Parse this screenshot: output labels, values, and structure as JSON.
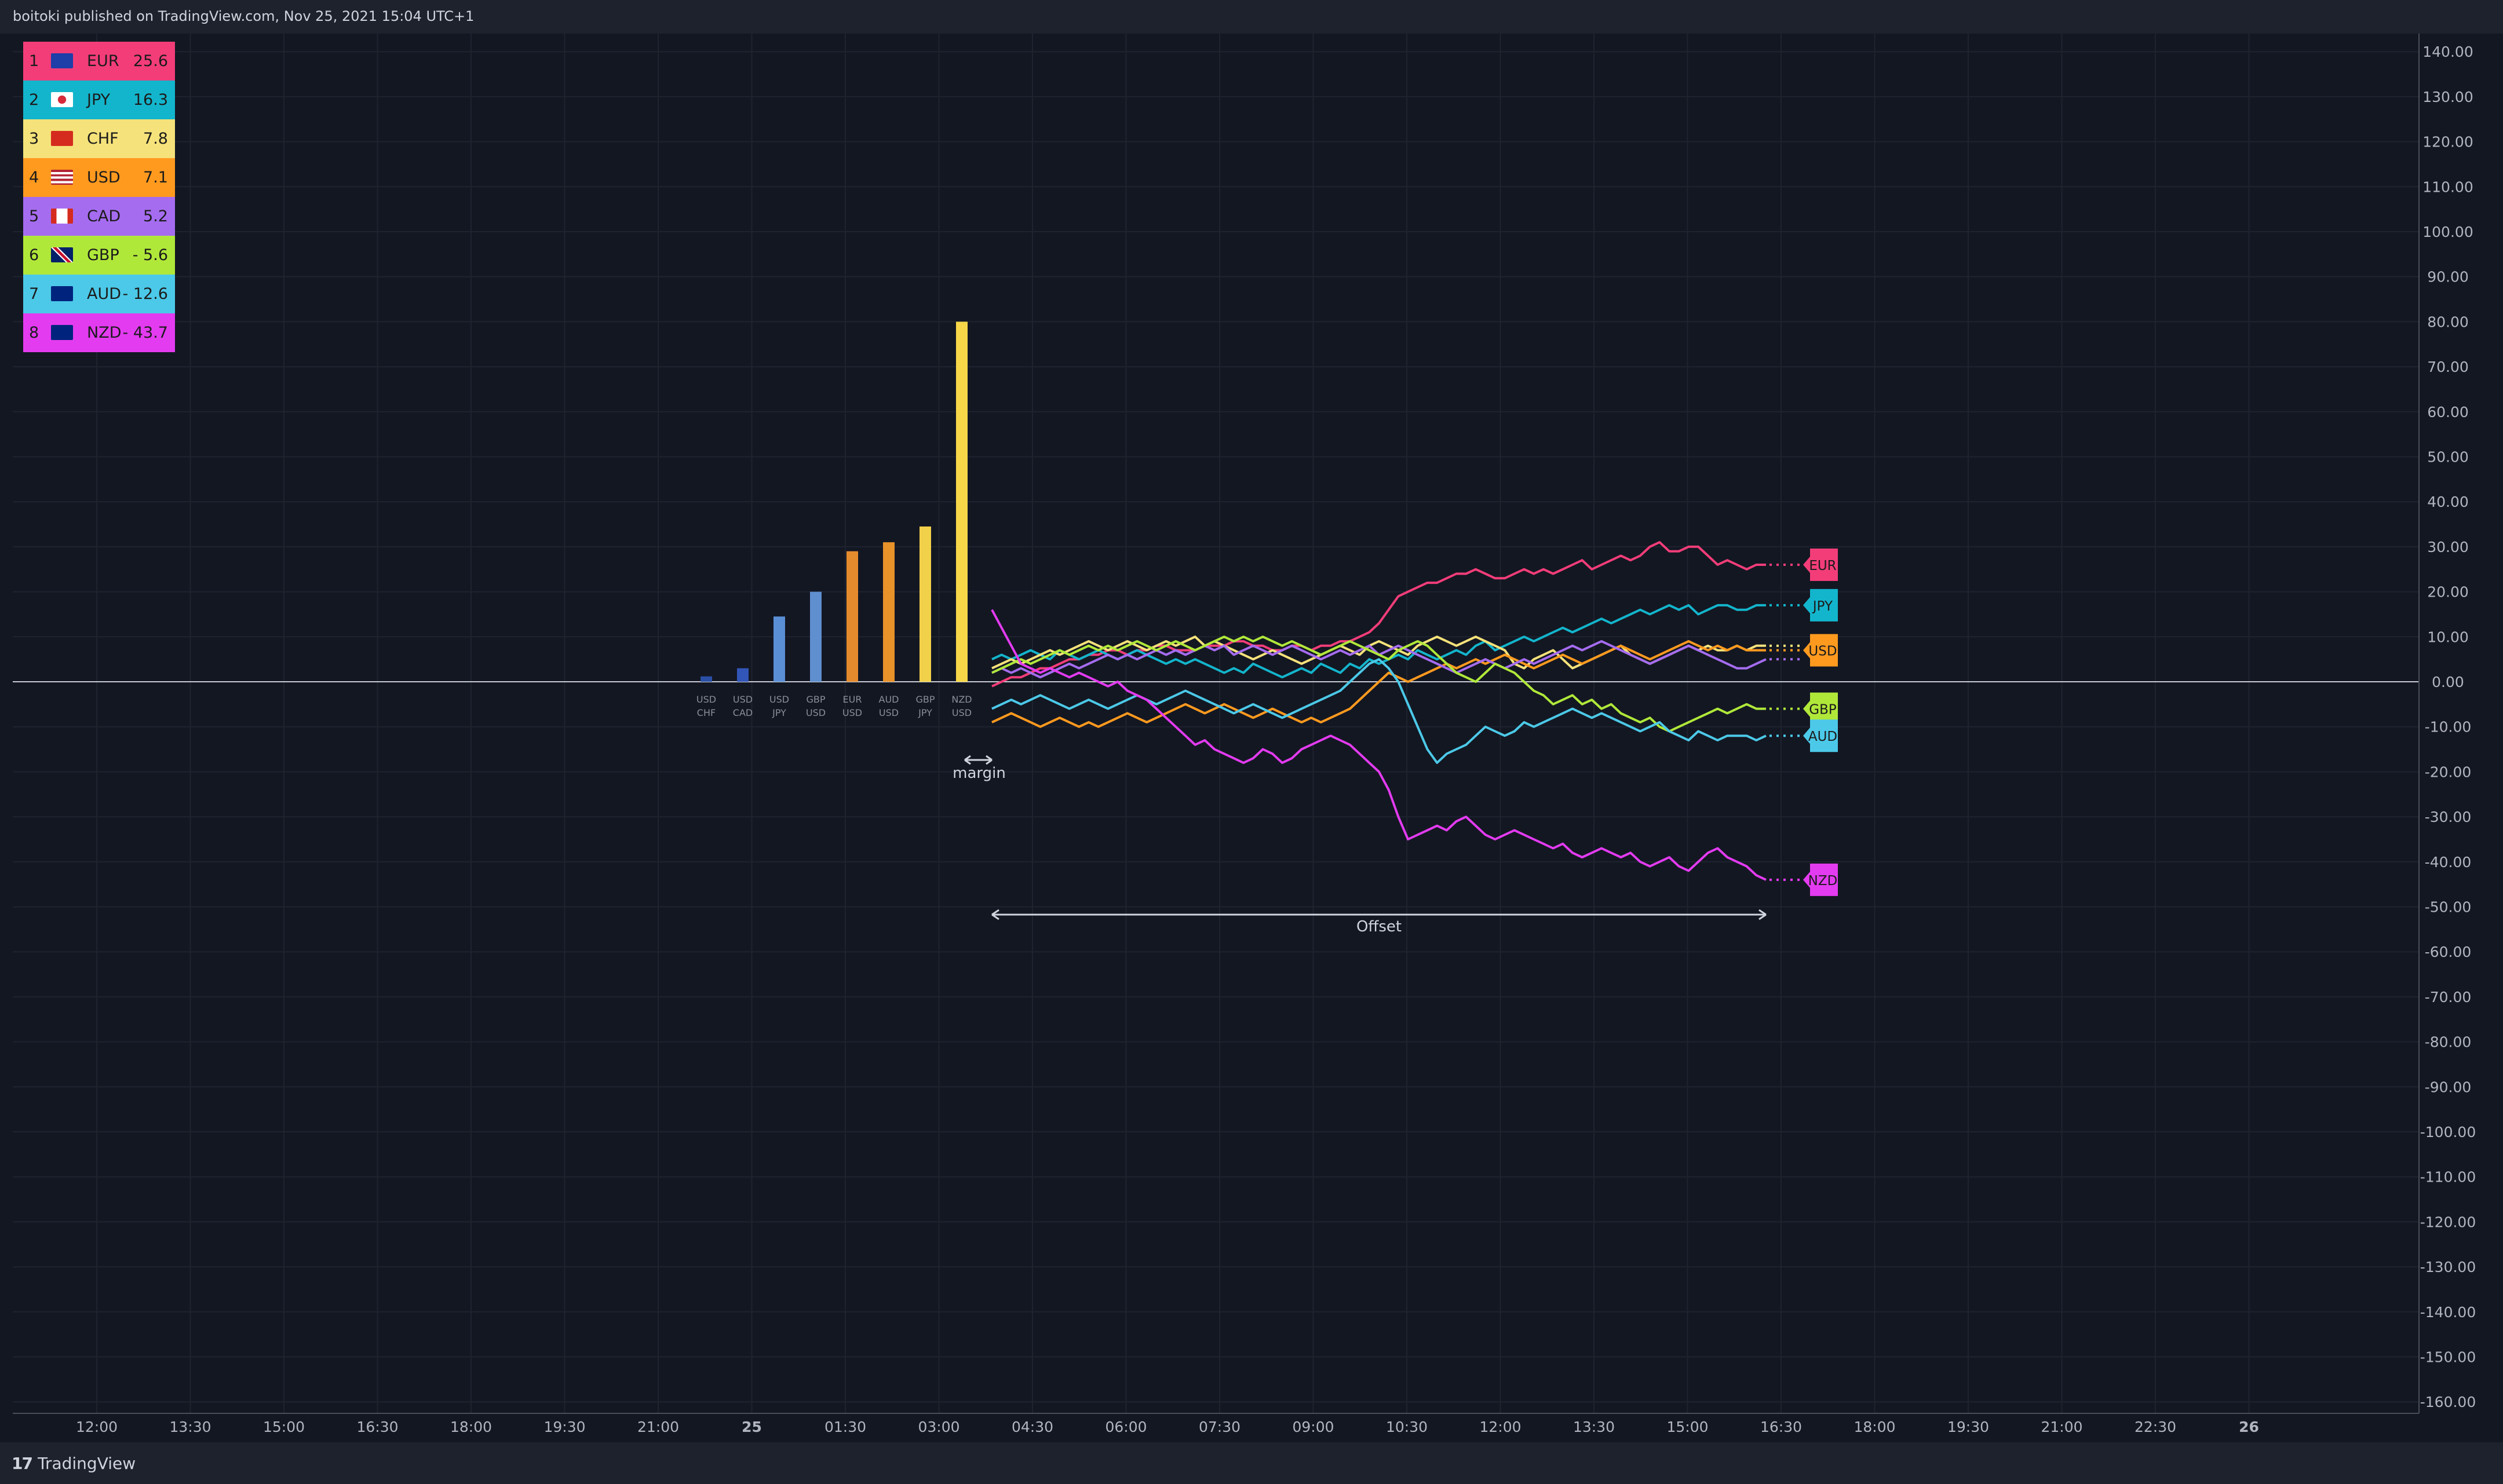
{
  "header": {
    "text": "boitoki published on TradingView.com, Nov 25, 2021 15:04 UTC+1"
  },
  "footer": {
    "brand_mark": "17",
    "brand": "TradingView"
  },
  "strength_table": [
    {
      "rank": "1",
      "currency": "EUR",
      "value": "25.6",
      "color": "#f23d79",
      "flag_icon": "eu-flag-icon"
    },
    {
      "rank": "2",
      "currency": "JPY",
      "value": "16.3",
      "color": "#13b5cc",
      "flag_icon": "jp-flag-icon"
    },
    {
      "rank": "3",
      "currency": "CHF",
      "value": "7.8",
      "color": "#f5e27a",
      "flag_icon": "ch-flag-icon"
    },
    {
      "rank": "4",
      "currency": "USD",
      "value": "7.1",
      "color": "#ff9a1f",
      "flag_icon": "us-flag-icon"
    },
    {
      "rank": "5",
      "currency": "CAD",
      "value": "5.2",
      "color": "#a56cf0",
      "flag_icon": "ca-flag-icon"
    },
    {
      "rank": "6",
      "currency": "GBP",
      "value": "- 5.6",
      "color": "#b0e83a",
      "flag_icon": "gb-flag-icon"
    },
    {
      "rank": "7",
      "currency": "AUD",
      "value": "- 12.6",
      "color": "#4cc9e8",
      "flag_icon": "au-flag-icon"
    },
    {
      "rank": "8",
      "currency": "NZD",
      "value": "- 43.7",
      "color": "#e33bf0",
      "flag_icon": "nz-flag-icon"
    }
  ],
  "chart_data": {
    "type": "line",
    "x_tick_labels": [
      "12:00",
      "13:30",
      "15:00",
      "16:30",
      "18:00",
      "19:30",
      "21:00",
      "25",
      "01:30",
      "03:00",
      "04:30",
      "06:00",
      "07:30",
      "09:00",
      "10:30",
      "12:00",
      "13:30",
      "15:00",
      "16:30",
      "18:00",
      "19:30",
      "21:00",
      "22:30",
      "26"
    ],
    "y_tick_labels": [
      "140.00",
      "130.00",
      "120.00",
      "110.00",
      "100.00",
      "90.00",
      "80.00",
      "70.00",
      "60.00",
      "50.00",
      "40.00",
      "30.00",
      "20.00",
      "10.00",
      "0.00",
      "-10.00",
      "-20.00",
      "-30.00",
      "-40.00",
      "-50.00",
      "-60.00",
      "-70.00",
      "-80.00",
      "-90.00",
      "-100.00",
      "-110.00",
      "-120.00",
      "-130.00",
      "-140.00",
      "-150.00",
      "-160.00"
    ],
    "ylim": [
      -160,
      140
    ],
    "grid": true,
    "bars": {
      "categories": [
        [
          "USD",
          "CHF"
        ],
        [
          "USD",
          "CAD"
        ],
        [
          "USD",
          "JPY"
        ],
        [
          "GBP",
          "USD"
        ],
        [
          "EUR",
          "USD"
        ],
        [
          "AUD",
          "USD"
        ],
        [
          "GBP",
          "JPY"
        ],
        [
          "NZD",
          "USD"
        ]
      ],
      "values": [
        1.2,
        3.0,
        14.5,
        20.0,
        29.0,
        31.0,
        34.5,
        80.0
      ],
      "colors": [
        "#2a4fa5",
        "#3256b8",
        "#5a8fd6",
        "#5f8fcf",
        "#e48b2e",
        "#e8922a",
        "#f2d14a",
        "#f7d748"
      ]
    },
    "series": [
      {
        "name": "EUR",
        "color": "#f23d79",
        "values": [
          -1,
          0,
          1,
          1,
          2,
          3,
          3,
          4,
          5,
          5,
          6,
          6,
          7,
          7,
          6,
          7,
          7,
          8,
          8,
          7,
          7,
          7,
          8,
          8,
          8,
          9,
          9,
          8,
          8,
          7,
          7,
          8,
          8,
          7,
          8,
          8,
          9,
          9,
          10,
          11,
          13,
          16,
          19,
          20,
          21,
          22,
          22,
          23,
          24,
          24,
          25,
          24,
          23,
          23,
          24,
          25,
          24,
          25,
          24,
          25,
          26,
          27,
          25,
          26,
          27,
          28,
          27,
          28,
          30,
          31,
          29,
          29,
          30,
          30,
          28,
          26,
          27,
          26,
          25,
          26,
          26
        ]
      },
      {
        "name": "JPY",
        "color": "#13b5cc",
        "values": [
          5,
          6,
          5,
          6,
          7,
          6,
          5,
          7,
          6,
          5,
          6,
          7,
          6,
          5,
          6,
          7,
          6,
          5,
          4,
          5,
          4,
          5,
          4,
          3,
          2,
          3,
          2,
          4,
          3,
          2,
          1,
          2,
          3,
          2,
          4,
          3,
          2,
          4,
          3,
          5,
          4,
          5,
          6,
          5,
          7,
          6,
          5,
          6,
          7,
          6,
          8,
          9,
          7,
          8,
          9,
          10,
          9,
          10,
          11,
          12,
          11,
          12,
          13,
          14,
          13,
          14,
          15,
          16,
          15,
          16,
          17,
          16,
          17,
          15,
          16,
          17,
          17,
          16,
          16,
          17,
          17
        ]
      },
      {
        "name": "CHF",
        "color": "#f5e27a",
        "values": [
          3,
          4,
          5,
          4,
          5,
          6,
          7,
          6,
          7,
          8,
          9,
          8,
          7,
          8,
          9,
          8,
          7,
          8,
          9,
          8,
          9,
          10,
          8,
          9,
          8,
          7,
          6,
          5,
          6,
          7,
          6,
          5,
          4,
          5,
          6,
          7,
          8,
          7,
          6,
          8,
          9,
          8,
          7,
          6,
          8,
          9,
          10,
          9,
          8,
          9,
          10,
          9,
          8,
          7,
          4,
          3,
          5,
          6,
          7,
          5,
          3,
          4,
          5,
          6,
          7,
          8,
          6,
          5,
          4,
          5,
          6,
          7,
          8,
          7,
          8,
          7,
          7,
          8,
          7,
          8,
          8
        ]
      },
      {
        "name": "USD",
        "color": "#ff9a1f",
        "values": [
          -9,
          -8,
          -7,
          -8,
          -9,
          -10,
          -9,
          -8,
          -9,
          -10,
          -9,
          -10,
          -9,
          -8,
          -7,
          -8,
          -9,
          -8,
          -7,
          -6,
          -5,
          -6,
          -7,
          -6,
          -5,
          -6,
          -7,
          -8,
          -7,
          -6,
          -7,
          -8,
          -9,
          -8,
          -9,
          -8,
          -7,
          -6,
          -4,
          -2,
          0,
          2,
          1,
          0,
          1,
          2,
          3,
          4,
          3,
          4,
          5,
          4,
          5,
          6,
          5,
          4,
          3,
          4,
          5,
          6,
          5,
          4,
          5,
          6,
          7,
          8,
          7,
          6,
          5,
          6,
          7,
          8,
          9,
          8,
          7,
          8,
          7,
          8,
          7,
          7,
          7
        ]
      },
      {
        "name": "CAD",
        "color": "#a56cf0",
        "values": [
          2,
          3,
          2,
          3,
          2,
          1,
          2,
          3,
          4,
          3,
          4,
          5,
          6,
          5,
          6,
          5,
          6,
          7,
          6,
          7,
          6,
          7,
          8,
          7,
          8,
          6,
          7,
          8,
          7,
          6,
          7,
          8,
          7,
          6,
          5,
          6,
          7,
          6,
          7,
          8,
          6,
          7,
          8,
          7,
          6,
          5,
          4,
          3,
          2,
          3,
          4,
          5,
          4,
          3,
          4,
          5,
          4,
          5,
          6,
          7,
          8,
          7,
          8,
          9,
          8,
          7,
          6,
          5,
          4,
          5,
          6,
          7,
          8,
          7,
          6,
          5,
          4,
          3,
          3,
          4,
          5
        ]
      },
      {
        "name": "GBP",
        "color": "#b0e83a",
        "values": [
          2,
          3,
          4,
          5,
          4,
          5,
          6,
          7,
          6,
          7,
          8,
          7,
          8,
          7,
          8,
          9,
          8,
          7,
          8,
          9,
          8,
          7,
          8,
          9,
          10,
          9,
          10,
          9,
          10,
          9,
          8,
          9,
          8,
          7,
          6,
          7,
          8,
          9,
          8,
          7,
          6,
          5,
          7,
          8,
          9,
          8,
          6,
          4,
          2,
          1,
          0,
          2,
          4,
          3,
          2,
          0,
          -2,
          -3,
          -5,
          -4,
          -3,
          -5,
          -4,
          -6,
          -5,
          -7,
          -8,
          -9,
          -8,
          -10,
          -11,
          -10,
          -9,
          -8,
          -7,
          -6,
          -7,
          -6,
          -5,
          -6,
          -6
        ]
      },
      {
        "name": "AUD",
        "color": "#4cc9e8",
        "values": [
          -6,
          -5,
          -4,
          -5,
          -4,
          -3,
          -4,
          -5,
          -6,
          -5,
          -4,
          -5,
          -6,
          -5,
          -4,
          -3,
          -4,
          -5,
          -4,
          -3,
          -2,
          -3,
          -4,
          -5,
          -6,
          -7,
          -6,
          -5,
          -6,
          -7,
          -8,
          -7,
          -6,
          -5,
          -4,
          -3,
          -2,
          0,
          2,
          4,
          5,
          3,
          0,
          -5,
          -10,
          -15,
          -18,
          -16,
          -15,
          -14,
          -12,
          -10,
          -11,
          -12,
          -11,
          -9,
          -10,
          -9,
          -8,
          -7,
          -6,
          -7,
          -8,
          -7,
          -8,
          -9,
          -10,
          -11,
          -10,
          -9,
          -11,
          -12,
          -13,
          -11,
          -12,
          -13,
          -12,
          -12,
          -12,
          -13,
          -12
        ]
      },
      {
        "name": "NZD",
        "color": "#e33bf0",
        "values": [
          16,
          12,
          8,
          4,
          3,
          2,
          3,
          2,
          1,
          2,
          1,
          0,
          -1,
          0,
          -2,
          -3,
          -4,
          -6,
          -8,
          -10,
          -12,
          -14,
          -13,
          -15,
          -16,
          -17,
          -18,
          -17,
          -15,
          -16,
          -18,
          -17,
          -15,
          -14,
          -13,
          -12,
          -13,
          -14,
          -16,
          -18,
          -20,
          -24,
          -30,
          -35,
          -34,
          -33,
          -32,
          -33,
          -31,
          -30,
          -32,
          -34,
          -35,
          -34,
          -33,
          -34,
          -35,
          -36,
          -37,
          -36,
          -38,
          -39,
          -38,
          -37,
          -38,
          -39,
          -38,
          -40,
          -41,
          -40,
          -39,
          -41,
          -42,
          -40,
          -38,
          -37,
          -39,
          -40,
          -41,
          -43,
          -44
        ]
      }
    ],
    "annotations": {
      "margin": "margin",
      "offset": "Offset"
    }
  }
}
